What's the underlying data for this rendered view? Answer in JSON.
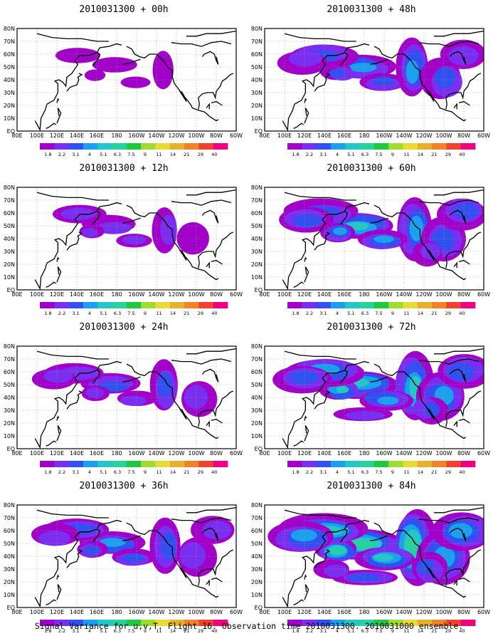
{
  "caption": "Signal Variance for u,v,T. Flight 16. Observation time 2010031300. 2010031000 ensemble.",
  "longitude_labels": [
    "80E",
    "100E",
    "120E",
    "140E",
    "160E",
    "180",
    "160W",
    "140W",
    "120W",
    "100W",
    "80W",
    "60W"
  ],
  "latitude_labels": [
    "EQ",
    "10N",
    "20N",
    "30N",
    "40N",
    "50N",
    "60N",
    "70N",
    "80N"
  ],
  "colorbar": {
    "labels": [
      "1.8",
      "2.2",
      "3.1",
      "4",
      "5.1",
      "6.3",
      "7.5",
      "9",
      "11",
      "14",
      "21",
      "29",
      "40"
    ],
    "colors": [
      "#a000c8",
      "#7a2ef0",
      "#3050f0",
      "#1aa0ee",
      "#22c8c8",
      "#26d2a0",
      "#20c840",
      "#a0dc30",
      "#e6dc32",
      "#e6af2d",
      "#f08228",
      "#f04030",
      "#f00082"
    ]
  },
  "panels": [
    {
      "title": "2010031300 + 00h",
      "column": "left",
      "row": 0,
      "intensity": 0.15
    },
    {
      "title": "2010031300 + 12h",
      "column": "left",
      "row": 1,
      "intensity": 0.3
    },
    {
      "title": "2010031300 + 24h",
      "column": "left",
      "row": 2,
      "intensity": 0.4
    },
    {
      "title": "2010031300 + 36h",
      "column": "left",
      "row": 3,
      "intensity": 0.5
    },
    {
      "title": "2010031300 + 48h",
      "column": "right",
      "row": 0,
      "intensity": 0.55
    },
    {
      "title": "2010031300 + 60h",
      "column": "right",
      "row": 1,
      "intensity": 0.65
    },
    {
      "title": "2010031300 + 72h",
      "column": "right",
      "row": 2,
      "intensity": 0.75
    },
    {
      "title": "2010031300 + 84h",
      "column": "right",
      "row": 3,
      "intensity": 0.9
    }
  ]
}
